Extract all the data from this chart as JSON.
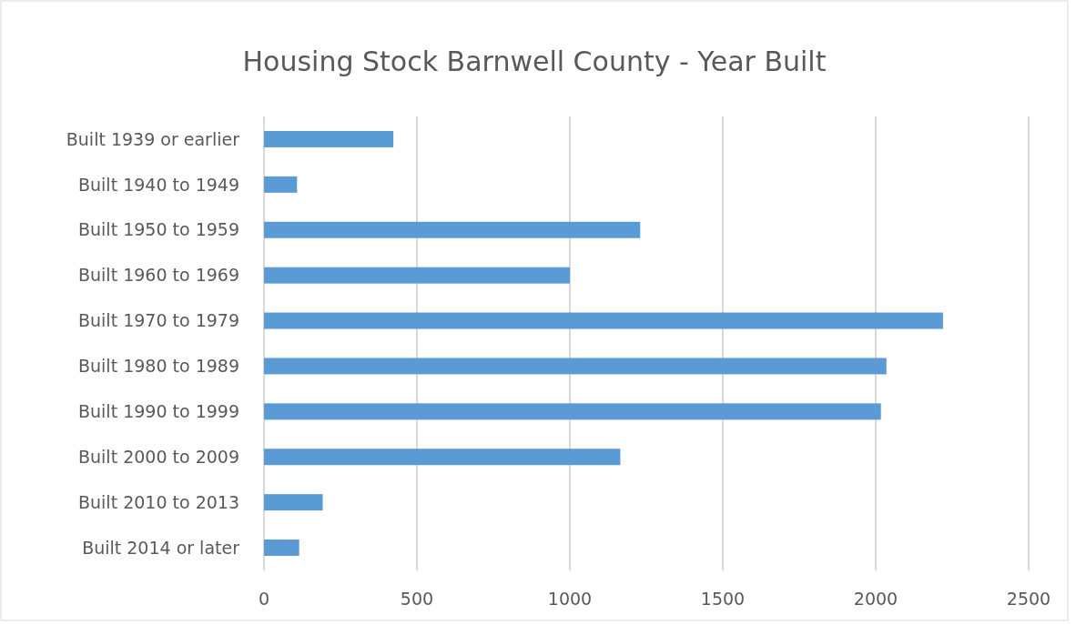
{
  "chart_data": {
    "type": "bar",
    "orientation": "horizontal",
    "title": "Housing Stock Barnwell County - Year Built",
    "categories": [
      "Built 1939 or earlier",
      "Built 1940 to 1949",
      "Built 1950 to 1959",
      "Built 1960 to 1969",
      "Built 1970 to 1979",
      "Built 1980 to 1989",
      "Built 1990 to 1999",
      "Built 2000 to 2009",
      "Built 2010 to 2013",
      "Built 2014 or later"
    ],
    "values": [
      423,
      108,
      1230,
      1000,
      2220,
      2035,
      2017,
      1165,
      192,
      115
    ],
    "color": "#5b9bd5",
    "xlim": [
      0,
      2500
    ],
    "xticks": [
      0,
      500,
      1000,
      1500,
      2000,
      2500
    ],
    "grid": "x"
  }
}
